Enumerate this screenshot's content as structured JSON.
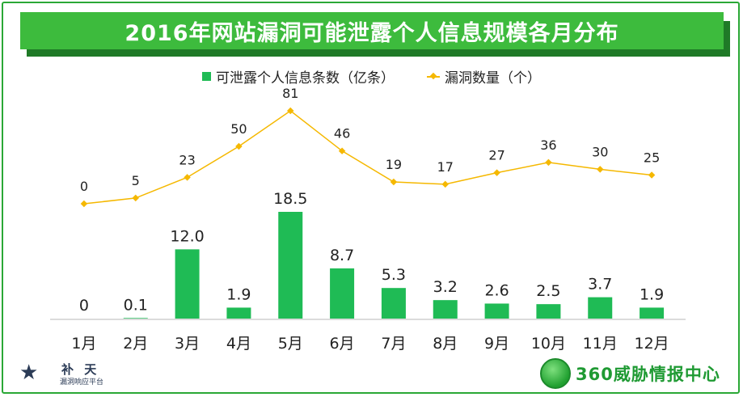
{
  "title": "2016年网站漏洞可能泄露个人信息规模各月分布",
  "colors": {
    "bar": "#1fbb55",
    "line": "#f5b800",
    "title_bg": "#3dbb3d",
    "title_shadow": "#1f7a27",
    "frame": "#2aa836"
  },
  "chart_data": {
    "type": "bar",
    "categories": [
      "1月",
      "2月",
      "3月",
      "4月",
      "5月",
      "6月",
      "7月",
      "8月",
      "9月",
      "10月",
      "11月",
      "12月"
    ],
    "series": [
      {
        "name": "可泄露个人信息条数（亿条）",
        "type": "bar",
        "values": [
          0,
          0.1,
          12.0,
          1.9,
          18.5,
          8.7,
          5.3,
          3.2,
          2.6,
          2.5,
          3.7,
          1.9
        ],
        "labels": [
          "0",
          "0.1",
          "12.0",
          "1.9",
          "18.5",
          "8.7",
          "5.3",
          "3.2",
          "2.6",
          "2.5",
          "3.7",
          "1.9"
        ]
      },
      {
        "name": "漏洞数量（个）",
        "type": "line",
        "values": [
          0,
          5,
          23,
          50,
          81,
          46,
          19,
          17,
          27,
          36,
          30,
          25
        ],
        "labels": [
          "0",
          "5",
          "23",
          "50",
          "81",
          "46",
          "19",
          "17",
          "27",
          "36",
          "30",
          "25"
        ]
      }
    ],
    "legend": "top-center",
    "grid": false
  },
  "logos": {
    "left_name": "补 天",
    "left_sub": "漏洞响应平台",
    "right_brand": "360威胁情报中心"
  }
}
